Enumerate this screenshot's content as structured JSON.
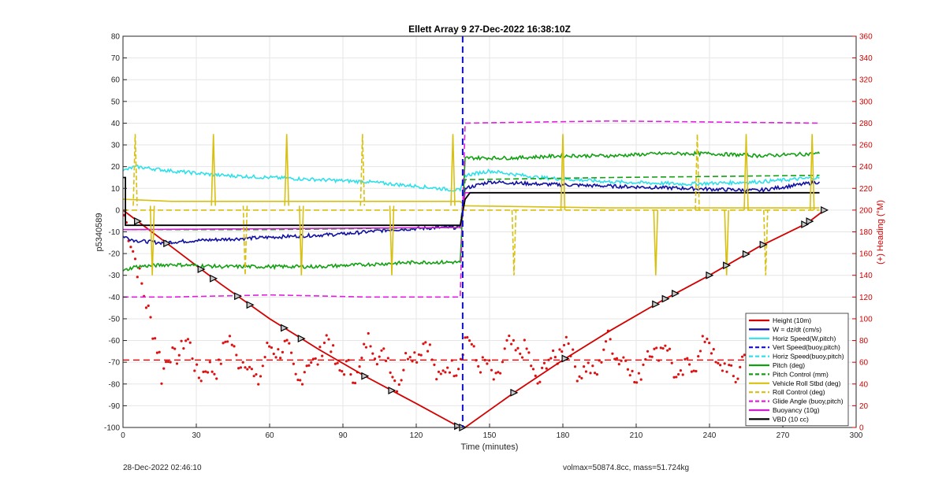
{
  "chart_data": {
    "type": "line",
    "title": "Ellett Array 9 27-Dec-2022 16:38:10Z",
    "xlabel": "Time (minutes)",
    "ylabel": "p5340589",
    "y2label": "(+) Heading (°M)",
    "xlim": [
      0,
      300
    ],
    "ylim": [
      -100,
      80
    ],
    "y2lim": [
      0,
      360
    ],
    "xticks": [
      "0",
      "30",
      "60",
      "90",
      "120",
      "150",
      "180",
      "210",
      "240",
      "270",
      "300"
    ],
    "yticks": [
      "80",
      "70",
      "60",
      "50",
      "40",
      "30",
      "20",
      "10",
      "0",
      "-10",
      "-20",
      "-30",
      "-40",
      "-50",
      "-60",
      "-70",
      "-80",
      "-90",
      "-100"
    ],
    "y2ticks": [
      "360",
      "340",
      "320",
      "300",
      "280",
      "260",
      "240",
      "220",
      "200",
      "180",
      "160",
      "140",
      "120",
      "100",
      "80",
      "60",
      "40",
      "20",
      "0"
    ],
    "grid": true,
    "legend_position": "bottom-right",
    "vertical_marker_x": 139,
    "heading_mean": 62,
    "colors": {
      "height": "#d40000",
      "w": "#1010a0",
      "horiz_speed": "#2fe0ea",
      "vert_speed": "#1010d0",
      "pitch": "#12a012",
      "roll": "#d8c010",
      "glide": "#e020e0",
      "buoyancy": "#d020d0",
      "vbd": "#000000",
      "heading": "#dd1111"
    },
    "series": [
      {
        "name": "Height (10m)",
        "key": "height",
        "style": "solid",
        "x": [
          0,
          20,
          40,
          60,
          80,
          100,
          120,
          138,
          140,
          160,
          180,
          200,
          220,
          240,
          260,
          280,
          287
        ],
        "values": [
          0,
          -17,
          -34,
          -50,
          -64,
          -77,
          -89,
          -100,
          -100,
          -84,
          -69,
          -55,
          -42,
          -30,
          -17,
          -6,
          0
        ]
      },
      {
        "name": "W = dz/dt (cm/s)",
        "key": "w",
        "style": "solid",
        "x": [
          0,
          5,
          15,
          30,
          50,
          70,
          90,
          110,
          130,
          138,
          140,
          150,
          170,
          200,
          230,
          260,
          285
        ],
        "values": [
          -12,
          -14,
          -15,
          -14,
          -13,
          -12,
          -11,
          -9,
          -8,
          -8,
          10,
          13,
          12,
          11,
          10,
          9,
          13
        ]
      },
      {
        "name": "Horiz Speed(W,pitch)",
        "key": "horiz_speed",
        "style": "solid",
        "x": [
          0,
          5,
          20,
          40,
          60,
          80,
          100,
          120,
          138,
          140,
          150,
          170,
          200,
          230,
          260,
          285
        ],
        "values": [
          18,
          20,
          18,
          16,
          15,
          14,
          13,
          11,
          9,
          16,
          18,
          15,
          13,
          12,
          13,
          15
        ]
      },
      {
        "name": "Vert Speed(buoy,pitch)",
        "key": "vert_speed",
        "style": "dashed",
        "x": [],
        "values": []
      },
      {
        "name": "Horiz Speed(buoy,pitch)",
        "key": "horiz_speed",
        "style": "dashed",
        "x": [],
        "values": []
      },
      {
        "name": "Pitch (deg)",
        "key": "pitch",
        "style": "solid",
        "x": [
          0,
          5,
          20,
          40,
          60,
          80,
          100,
          120,
          138,
          140,
          160,
          180,
          200,
          220,
          240,
          260,
          285
        ],
        "values": [
          -28,
          -26,
          -25,
          -26,
          -26,
          -26,
          -25,
          -24,
          -24,
          24,
          24,
          25,
          25,
          26,
          26,
          25,
          26
        ]
      },
      {
        "name": "Pitch Control (mm)",
        "key": "pitch",
        "style": "dashed",
        "x": [
          0,
          60,
          138,
          140,
          200,
          285
        ],
        "values": [
          -9,
          -9,
          -8,
          14,
          15,
          16
        ]
      },
      {
        "name": "Vehicle Roll Stbd (deg)",
        "key": "roll",
        "style": "solid",
        "x": [
          0,
          20,
          60,
          100,
          138,
          140,
          200,
          285
        ],
        "values": [
          5,
          4,
          4,
          4,
          4,
          2,
          1,
          1
        ]
      },
      {
        "name": "Roll Control (deg)",
        "key": "roll",
        "style": "dashed",
        "x": [
          0,
          20,
          60,
          100,
          138,
          140,
          200,
          285
        ],
        "values": [
          0,
          0,
          0,
          0,
          0,
          0,
          0,
          0
        ]
      },
      {
        "name": "Glide Angle (buoy,pitch)",
        "key": "glide",
        "style": "dashed",
        "x": [
          0,
          20,
          60,
          100,
          138,
          140,
          200,
          285
        ],
        "values": [
          -40,
          -40,
          -39,
          -40,
          -40,
          40,
          41,
          40
        ]
      },
      {
        "name": "Buoyancy (10g)",
        "key": "buoyancy",
        "style": "solid",
        "x": [
          0,
          138,
          140,
          285
        ],
        "values": [
          -9,
          -8,
          8,
          8
        ]
      },
      {
        "name": "VBD (10 cc)",
        "key": "vbd",
        "style": "solid",
        "x": [
          0,
          1,
          1,
          138,
          140,
          142,
          285
        ],
        "values": [
          15,
          15,
          -7,
          -7,
          5,
          8,
          8
        ]
      }
    ]
  },
  "footer": {
    "left": "28-Dec-2022 02:46:10",
    "right": "volmax=50874.8cc, mass=51.724kg"
  }
}
